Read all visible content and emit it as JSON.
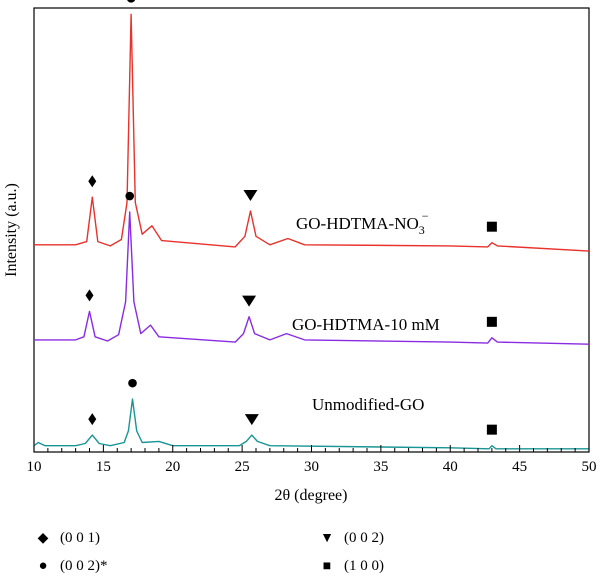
{
  "chart_data": {
    "type": "line",
    "xlabel": "2θ (degree)",
    "ylabel": "Intensity (a.u.)",
    "xlim": [
      10,
      50
    ],
    "x_ticks": [
      10,
      15,
      20,
      25,
      30,
      35,
      40,
      45,
      50
    ],
    "y_ticks_shown": false,
    "grid": false,
    "series": [
      {
        "name": "GO-HDTMA-NO3⁻",
        "color": "#e8322b",
        "baseline": 196,
        "points": [
          [
            10,
            0
          ],
          [
            13,
            0
          ],
          [
            13.8,
            3
          ],
          [
            14.2,
            45
          ],
          [
            14.6,
            3
          ],
          [
            15.5,
            -1
          ],
          [
            16.3,
            5
          ],
          [
            16.7,
            40
          ],
          [
            17.0,
            218
          ],
          [
            17.3,
            40
          ],
          [
            17.8,
            10
          ],
          [
            18.5,
            18
          ],
          [
            19.2,
            4
          ],
          [
            24.5,
            -2
          ],
          [
            25.2,
            8
          ],
          [
            25.6,
            32
          ],
          [
            26.0,
            8
          ],
          [
            27.0,
            0
          ],
          [
            28.3,
            6
          ],
          [
            29.5,
            0
          ],
          [
            40,
            -1
          ],
          [
            42.7,
            -2
          ],
          [
            43.0,
            2
          ],
          [
            43.4,
            -1
          ],
          [
            50,
            -6
          ]
        ]
      },
      {
        "name": "GO-HDTMA-10 mM",
        "color": "#8a2be2",
        "baseline": 106,
        "points": [
          [
            10,
            0
          ],
          [
            13,
            0
          ],
          [
            13.6,
            3
          ],
          [
            14.0,
            27
          ],
          [
            14.4,
            3
          ],
          [
            15.3,
            -1
          ],
          [
            16.1,
            5
          ],
          [
            16.6,
            36
          ],
          [
            16.9,
            121
          ],
          [
            17.2,
            36
          ],
          [
            17.7,
            6
          ],
          [
            18.4,
            14
          ],
          [
            19.0,
            3
          ],
          [
            24.5,
            -2
          ],
          [
            25.1,
            6
          ],
          [
            25.5,
            22
          ],
          [
            25.9,
            6
          ],
          [
            27.0,
            0
          ],
          [
            28.2,
            6
          ],
          [
            29.5,
            0
          ],
          [
            40,
            -2
          ],
          [
            42.7,
            -3
          ],
          [
            43.0,
            2
          ],
          [
            43.4,
            -2
          ],
          [
            50,
            -4
          ]
        ]
      },
      {
        "name": "Unmodified-GO",
        "color": "#1a9595",
        "baseline": 6,
        "points": [
          [
            10,
            0
          ],
          [
            10.3,
            3
          ],
          [
            10.8,
            0
          ],
          [
            13,
            0
          ],
          [
            13.7,
            2
          ],
          [
            14.2,
            10
          ],
          [
            14.7,
            2
          ],
          [
            15.5,
            0
          ],
          [
            16.5,
            3
          ],
          [
            16.8,
            14
          ],
          [
            17.1,
            44
          ],
          [
            17.4,
            14
          ],
          [
            17.8,
            3
          ],
          [
            19.0,
            4
          ],
          [
            20.0,
            0
          ],
          [
            24.8,
            0
          ],
          [
            25.3,
            4
          ],
          [
            25.7,
            10
          ],
          [
            26.1,
            4
          ],
          [
            27.0,
            0
          ],
          [
            40,
            -2
          ],
          [
            42.8,
            -3
          ],
          [
            43.0,
            0
          ],
          [
            43.3,
            -3
          ],
          [
            50,
            -3
          ]
        ]
      }
    ],
    "series_labels": [
      "GO-HDTMA-NO",
      "3",
      "−",
      "GO-HDTMA-10 mM",
      "Unmodified-GO"
    ],
    "markers": [
      {
        "symbol": "diamond",
        "series": 0,
        "x": 14.2
      },
      {
        "symbol": "circle",
        "series": 0,
        "x": 17.0
      },
      {
        "symbol": "triangle",
        "series": 0,
        "x": 25.6
      },
      {
        "symbol": "square",
        "series": 0,
        "x": 43.0
      },
      {
        "symbol": "diamond",
        "series": 1,
        "x": 14.0
      },
      {
        "symbol": "circle",
        "series": 1,
        "x": 16.9
      },
      {
        "symbol": "triangle",
        "series": 1,
        "x": 25.5
      },
      {
        "symbol": "square",
        "series": 1,
        "x": 43.0
      },
      {
        "symbol": "diamond",
        "series": 2,
        "x": 14.2
      },
      {
        "symbol": "circle",
        "series": 2,
        "x": 17.1
      },
      {
        "symbol": "triangle",
        "series": 2,
        "x": 25.7
      },
      {
        "symbol": "square",
        "series": 2,
        "x": 43.0
      }
    ]
  },
  "legend": [
    {
      "symbol": "diamond",
      "label": "(0 0 1)"
    },
    {
      "symbol": "triangle",
      "label": "(0 0 2)"
    },
    {
      "symbol": "circle",
      "label": "(0 0 2)*"
    },
    {
      "symbol": "square",
      "label": "(1 0 0)"
    }
  ]
}
